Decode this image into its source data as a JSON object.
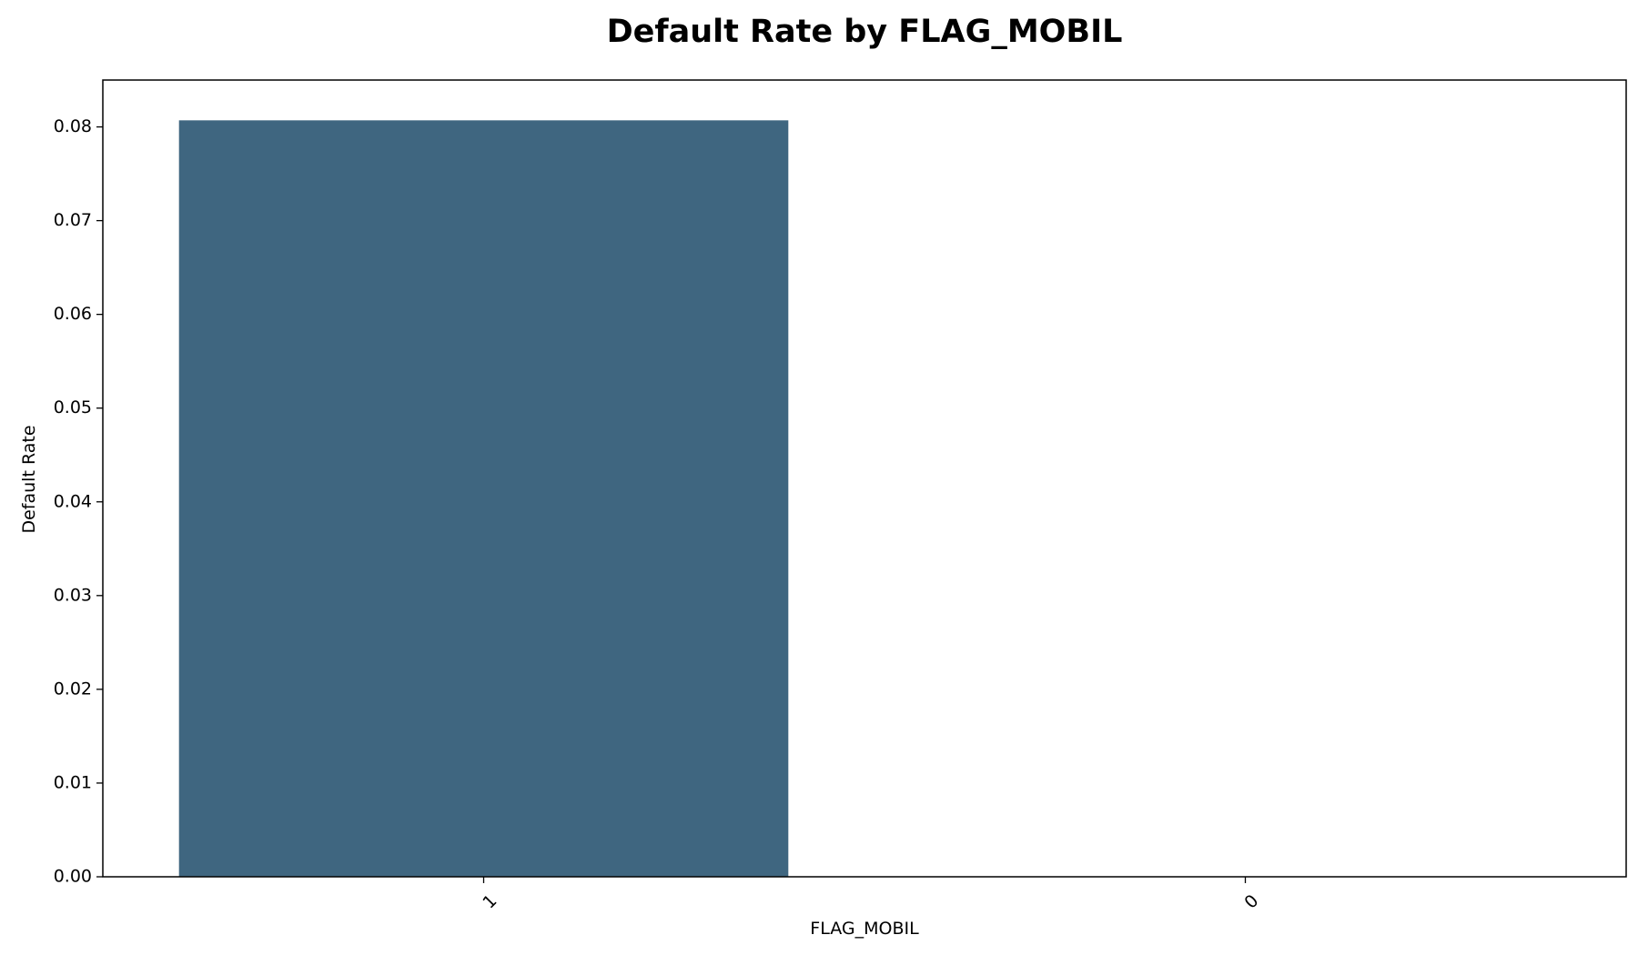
{
  "chart_data": {
    "type": "bar",
    "title": "Default Rate by FLAG_MOBIL",
    "xlabel": "FLAG_MOBIL",
    "ylabel": "Default Rate",
    "categories": [
      "1",
      "0"
    ],
    "values": [
      0.0807,
      0.0
    ],
    "ylim": [
      0,
      0.085
    ],
    "yticks": [
      0.0,
      0.01,
      0.02,
      0.03,
      0.04,
      0.05,
      0.06,
      0.07,
      0.08
    ],
    "ytick_labels": [
      "0.00",
      "0.01",
      "0.02",
      "0.03",
      "0.04",
      "0.05",
      "0.06",
      "0.07",
      "0.08"
    ],
    "grid": false,
    "legend": "none",
    "colors": {
      "bar": "#3f6680",
      "frame": "#000000"
    }
  }
}
